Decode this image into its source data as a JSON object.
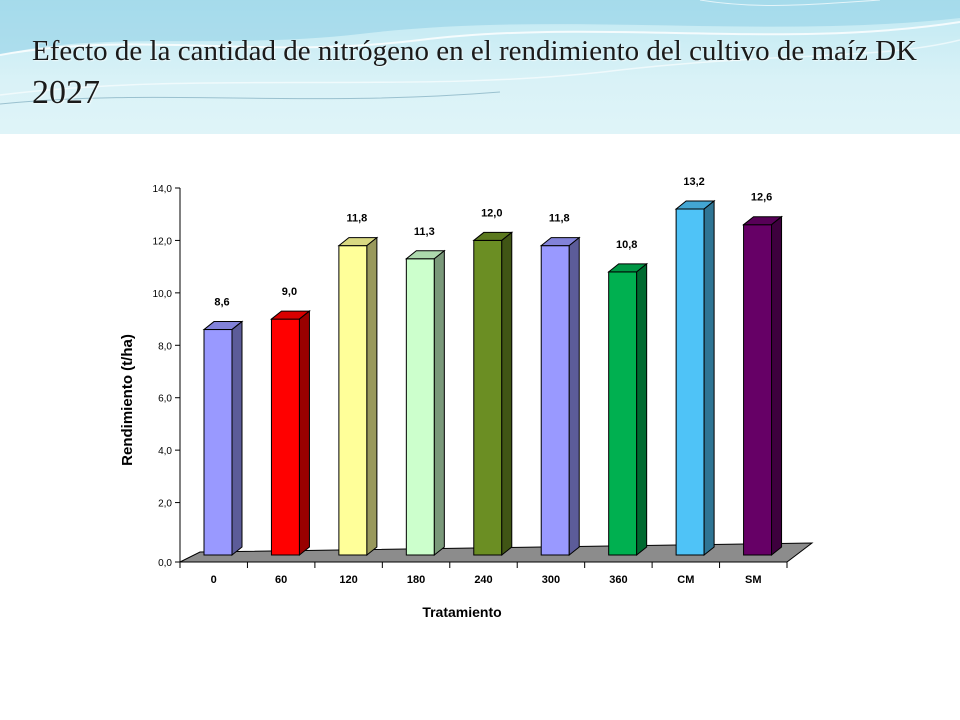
{
  "slide": {
    "title_main": "Efecto de la cantidad de nitrógeno en el rendimiento del cultivo de maíz  DK ",
    "title_number": "2027"
  },
  "chart_data": {
    "type": "bar",
    "categories": [
      "0",
      "60",
      "120",
      "180",
      "240",
      "300",
      "360",
      "CM",
      "SM"
    ],
    "values": [
      8.6,
      9.0,
      11.8,
      11.3,
      12.0,
      11.8,
      10.8,
      13.2,
      12.6
    ],
    "value_labels": [
      "8,6",
      "9,0",
      "11,8",
      "11,3",
      "12,0",
      "11,8",
      "10,8",
      "13,2",
      "12,6"
    ],
    "bar_colors": [
      "#9999ff",
      "#ff0000",
      "#ffff99",
      "#ccffcc",
      "#6b8e23",
      "#9999ff",
      "#00b050",
      "#4fc3f7",
      "#660066"
    ],
    "xlabel": "Tratamiento",
    "ylabel": "Rendimiento (t/ha)",
    "ylim": [
      0,
      14
    ],
    "yticks": [
      "0,0",
      "2,0",
      "4,0",
      "6,0",
      "8,0",
      "10,0",
      "12,0",
      "14,0"
    ],
    "grid": false,
    "legend": "none",
    "style": "3d-bar"
  }
}
